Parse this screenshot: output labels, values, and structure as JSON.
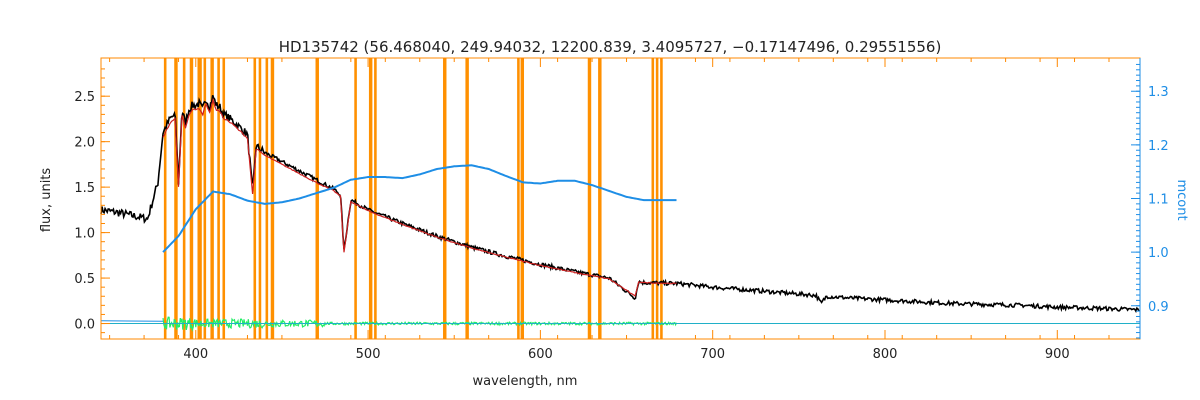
{
  "chart_data": {
    "type": "line",
    "title": "HD135742    (56.468040, 249.94032, 12200.839, 3.4095727, −0.17147496, 0.29551556)",
    "xlabel": "wavelength, nm",
    "ylabel": "flux, units",
    "y2label": "mcont",
    "xlim": [
      345,
      948
    ],
    "ylim": [
      -0.17,
      2.92
    ],
    "y2lim": [
      0.838,
      1.362
    ],
    "xticks": [
      400,
      500,
      600,
      700,
      800,
      900
    ],
    "yticks": [
      0.0,
      0.5,
      1.0,
      1.5,
      2.0,
      2.5
    ],
    "y2ticks": [
      0.9,
      1.0,
      1.1,
      1.2,
      1.3
    ],
    "xtick_labels": [
      "400",
      "500",
      "600",
      "700",
      "800",
      "900"
    ],
    "ytick_labels": [
      "0.0",
      "0.5",
      "1.0",
      "1.5",
      "2.0",
      "2.5"
    ],
    "y2tick_labels": [
      "0.9",
      "1.0",
      "1.1",
      "1.2",
      "1.3"
    ],
    "masked_regions": [
      [
        381.5,
        383.0
      ],
      [
        387.5,
        389.5
      ],
      [
        392.5,
        394.0
      ],
      [
        396.5,
        398.5
      ],
      [
        401.0,
        403.5
      ],
      [
        404.5,
        406.0
      ],
      [
        408.5,
        410.5
      ],
      [
        412.5,
        414.0
      ],
      [
        415.5,
        417.0
      ],
      [
        433.5,
        435.0
      ],
      [
        436.5,
        438.0
      ],
      [
        440.5,
        442.0
      ],
      [
        443.5,
        445.5
      ],
      [
        469.5,
        471.5
      ],
      [
        492.0,
        493.5
      ],
      [
        500.5,
        502.5
      ],
      [
        503.5,
        505.0
      ],
      [
        543.5,
        545.5
      ],
      [
        556.5,
        558.5
      ],
      [
        586.5,
        588.0
      ],
      [
        588.5,
        590.5
      ],
      [
        627.5,
        629.5
      ],
      [
        633.5,
        635.5
      ],
      [
        664.5,
        666.0
      ],
      [
        667.0,
        668.5
      ],
      [
        669.5,
        671.0
      ]
    ],
    "series": [
      {
        "role": "observed",
        "color": "#000000",
        "x": [
          345,
          355,
          365,
          372,
          378,
          381,
          385,
          388,
          390,
          392,
          394,
          396,
          398,
          400,
          402,
          404,
          406,
          408,
          410,
          412,
          414,
          416,
          418,
          422,
          426,
          430,
          433,
          435,
          440,
          450,
          460,
          470,
          480,
          484,
          486,
          490,
          500,
          520,
          540,
          560,
          580,
          600,
          620,
          640,
          655,
          657,
          660,
          680,
          700,
          720,
          740,
          760,
          763,
          766,
          780,
          800,
          820,
          840,
          860,
          880,
          900,
          920,
          948
        ],
        "y": [
          1.25,
          1.22,
          1.18,
          1.15,
          1.55,
          2.1,
          2.25,
          2.3,
          1.55,
          2.35,
          2.2,
          2.35,
          2.4,
          2.4,
          2.42,
          2.35,
          2.48,
          2.38,
          2.5,
          2.4,
          2.38,
          2.3,
          2.28,
          2.22,
          2.15,
          2.08,
          1.45,
          1.95,
          1.88,
          1.78,
          1.68,
          1.58,
          1.48,
          1.42,
          0.8,
          1.36,
          1.25,
          1.1,
          0.96,
          0.84,
          0.74,
          0.65,
          0.57,
          0.5,
          0.28,
          0.46,
          0.45,
          0.44,
          0.4,
          0.37,
          0.34,
          0.31,
          0.22,
          0.3,
          0.28,
          0.26,
          0.24,
          0.22,
          0.21,
          0.2,
          0.18,
          0.17,
          0.15
        ]
      },
      {
        "role": "model",
        "color": "#cc2020",
        "x": [
          381,
          385,
          388,
          390,
          392,
          394,
          396,
          398,
          400,
          402,
          404,
          406,
          408,
          410,
          412,
          414,
          416,
          418,
          422,
          426,
          430,
          433,
          435,
          440,
          450,
          460,
          470,
          480,
          484,
          486,
          490,
          500,
          520,
          540,
          560,
          580,
          600,
          620,
          640,
          655,
          657,
          660,
          679
        ],
        "y": [
          2.05,
          2.2,
          2.25,
          1.5,
          2.3,
          2.15,
          2.3,
          2.35,
          2.35,
          2.37,
          2.3,
          2.42,
          2.32,
          2.45,
          2.35,
          2.33,
          2.26,
          2.24,
          2.18,
          2.11,
          2.04,
          1.42,
          1.92,
          1.85,
          1.75,
          1.65,
          1.55,
          1.46,
          1.4,
          0.78,
          1.34,
          1.24,
          1.09,
          0.95,
          0.83,
          0.73,
          0.64,
          0.56,
          0.49,
          0.3,
          0.46,
          0.45,
          0.44
        ]
      },
      {
        "role": "mcont",
        "color": "#1e8ee6",
        "axis": "right",
        "x": [
          381,
          390,
          400,
          410,
          420,
          430,
          440,
          450,
          460,
          470,
          480,
          490,
          500,
          510,
          520,
          530,
          540,
          550,
          560,
          570,
          580,
          590,
          600,
          610,
          620,
          630,
          640,
          650,
          660,
          670,
          679
        ],
        "y": [
          1.0,
          1.03,
          1.08,
          1.113,
          1.108,
          1.096,
          1.09,
          1.093,
          1.1,
          1.11,
          1.12,
          1.135,
          1.14,
          1.14,
          1.138,
          1.145,
          1.155,
          1.16,
          1.162,
          1.155,
          1.142,
          1.13,
          1.128,
          1.133,
          1.133,
          1.125,
          1.114,
          1.103,
          1.097,
          1.097,
          1.097
        ]
      },
      {
        "role": "residual",
        "color": "#22ee66",
        "x": [
          381,
          679
        ],
        "y": [
          0.0,
          0.0
        ],
        "noise": [
          [
            381,
            400,
            0.07
          ],
          [
            400,
            440,
            0.05
          ],
          [
            440,
            475,
            0.04
          ],
          [
            475,
            679,
            0.015
          ]
        ]
      },
      {
        "role": "zero-line",
        "color": "#20b0c8",
        "x": [
          345,
          948
        ],
        "y": [
          0.0,
          0.0
        ]
      },
      {
        "role": "mcont-extension",
        "color": "#1e8ee6",
        "x": [
          345,
          381
        ],
        "y": [
          0.03,
          0.025
        ]
      }
    ]
  },
  "colors": {
    "axis": "#ff8800",
    "mask": "#ff9000",
    "right_axis": "#1e8ee6",
    "text": "#222222"
  }
}
